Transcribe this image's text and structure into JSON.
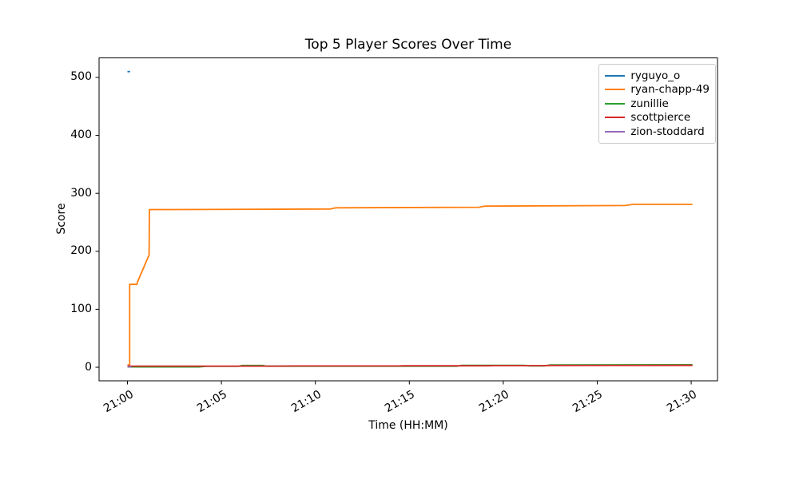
{
  "chart_data": {
    "type": "line",
    "title": "Top 5 Player Scores Over Time",
    "xlabel": "Time (HH:MM)",
    "ylabel": "Score",
    "x_unit": "minutes after 21:00",
    "xlim": [
      -1.51,
      31.4
    ],
    "ylim": [
      -23.4,
      533.7
    ],
    "grid": false,
    "legend_position": "upper right",
    "background_color": "#ffffff",
    "spine_color": "#000000",
    "x_ticks": [
      {
        "value": 0,
        "label": "21:00"
      },
      {
        "value": 5,
        "label": "21:05"
      },
      {
        "value": 10,
        "label": "21:10"
      },
      {
        "value": 15,
        "label": "21:15"
      },
      {
        "value": 20,
        "label": "21:20"
      },
      {
        "value": 25,
        "label": "21:25"
      },
      {
        "value": 30,
        "label": "21:30"
      }
    ],
    "y_ticks": [
      {
        "value": 0,
        "label": "0"
      },
      {
        "value": 100,
        "label": "100"
      },
      {
        "value": 200,
        "label": "200"
      },
      {
        "value": 300,
        "label": "300"
      },
      {
        "value": 400,
        "label": "400"
      },
      {
        "value": 500,
        "label": "500"
      }
    ],
    "series": [
      {
        "name": "ryguyo_o",
        "color": "#1f77b4",
        "points": [
          [
            0,
            510
          ],
          [
            0.14,
            510
          ]
        ]
      },
      {
        "name": "ryan-chapp-49",
        "color": "#ff7f0e",
        "points": [
          [
            0,
            4
          ],
          [
            0.12,
            4
          ],
          [
            0.12,
            143
          ],
          [
            0.5,
            143
          ],
          [
            0.55,
            148
          ],
          [
            1.1,
            190
          ],
          [
            1.15,
            193
          ],
          [
            1.17,
            272
          ],
          [
            2.5,
            272
          ],
          [
            10.8,
            273
          ],
          [
            11.1,
            275
          ],
          [
            18.7,
            276
          ],
          [
            19.0,
            278
          ],
          [
            26.5,
            279
          ],
          [
            26.9,
            281
          ],
          [
            30.07,
            281
          ]
        ]
      },
      {
        "name": "zunillie",
        "color": "#2ca02c",
        "points": [
          [
            0,
            0.5
          ],
          [
            3.8,
            0.5
          ],
          [
            4.2,
            1.5
          ],
          [
            5.9,
            1.5
          ],
          [
            6.1,
            3.0
          ],
          [
            7.2,
            3.0
          ],
          [
            7.4,
            1.8
          ],
          [
            17.5,
            1.8
          ],
          [
            17.8,
            3.3
          ],
          [
            21.1,
            3.3
          ],
          [
            21.4,
            2.4
          ],
          [
            22.2,
            2.4
          ],
          [
            22.5,
            4.0
          ],
          [
            30.07,
            4.3
          ]
        ]
      },
      {
        "name": "scottpierce",
        "color": "#d62728",
        "points": [
          [
            0,
            2.0
          ],
          [
            8.0,
            2.0
          ],
          [
            9.0,
            2.2
          ],
          [
            14.4,
            2.2
          ],
          [
            14.7,
            2.5
          ],
          [
            19.2,
            2.5
          ],
          [
            19.5,
            2.8
          ],
          [
            22.1,
            2.8
          ],
          [
            22.4,
            3.1
          ],
          [
            30.07,
            3.2
          ]
        ]
      },
      {
        "name": "zion-stoddard",
        "color": "#9467bd",
        "points": [
          [
            0,
            0.8
          ],
          [
            0.22,
            0.8
          ]
        ]
      }
    ]
  }
}
